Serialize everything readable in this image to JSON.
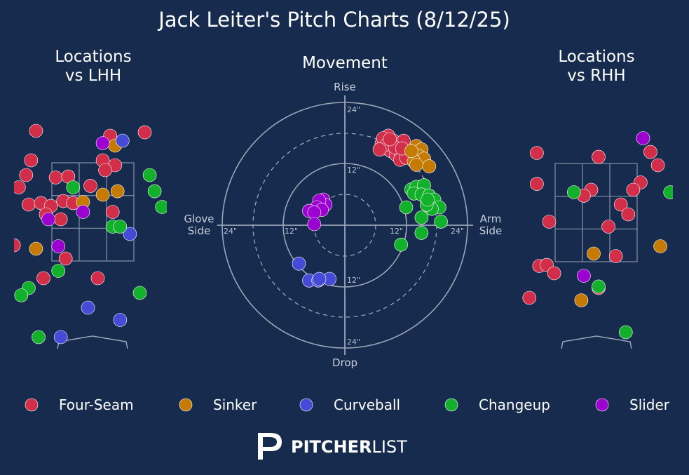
{
  "title": "Jack Leiter's Pitch Charts (8/12/25)",
  "panels": {
    "lhh": {
      "title_line1": "Locations",
      "title_line2": "vs LHH"
    },
    "movement": {
      "title": "Movement",
      "top_label": "Rise",
      "bottom_label": "Drop",
      "left_label_line1": "Glove",
      "left_label_line2": "Side",
      "right_label_line1": "Arm",
      "right_label_line2": "Side"
    },
    "rhh": {
      "title_line1": "Locations",
      "title_line2": "vs RHH"
    }
  },
  "ring_labels": [
    "24\"",
    "12\""
  ],
  "brand": {
    "bold": "PITCHER",
    "light": "LIST"
  },
  "colors": {
    "background": "#162b4d",
    "Four-Seam": "#d22d49",
    "Sinker": "#c57a02",
    "Curveball": "#454bd6",
    "Changeup": "#13b02b",
    "Slider": "#9b00d1"
  },
  "chart_data": [
    {
      "type": "scatter",
      "name": "Locations vs LHH",
      "points": [
        {
          "pitch": "Four-Seam",
          "x": -1.15,
          "y": 4.15
        },
        {
          "pitch": "Four-Seam",
          "x": 0.35,
          "y": 4.05
        },
        {
          "pitch": "Four-Seam",
          "x": 1.05,
          "y": 4.12
        },
        {
          "pitch": "Four-Seam",
          "x": -1.25,
          "y": 3.55
        },
        {
          "pitch": "Four-Seam",
          "x": 0.2,
          "y": 3.55
        },
        {
          "pitch": "Four-Seam",
          "x": 0.45,
          "y": 3.45
        },
        {
          "pitch": "Four-Seam",
          "x": -1.35,
          "y": 3.25
        },
        {
          "pitch": "Four-Seam",
          "x": -0.75,
          "y": 3.2
        },
        {
          "pitch": "Four-Seam",
          "x": -0.5,
          "y": 3.22
        },
        {
          "pitch": "Four-Seam",
          "x": 0.25,
          "y": 3.35
        },
        {
          "pitch": "Four-Seam",
          "x": -1.8,
          "y": 3.05
        },
        {
          "pitch": "Four-Seam",
          "x": -1.5,
          "y": 3.0
        },
        {
          "pitch": "Four-Seam",
          "x": -0.05,
          "y": 3.03
        },
        {
          "pitch": "Four-Seam",
          "x": -1.3,
          "y": 2.65
        },
        {
          "pitch": "Four-Seam",
          "x": -1.05,
          "y": 2.68
        },
        {
          "pitch": "Four-Seam",
          "x": -0.85,
          "y": 2.62
        },
        {
          "pitch": "Four-Seam",
          "x": -0.6,
          "y": 2.72
        },
        {
          "pitch": "Four-Seam",
          "x": -0.4,
          "y": 2.68
        },
        {
          "pitch": "Four-Seam",
          "x": -0.95,
          "y": 2.45
        },
        {
          "pitch": "Four-Seam",
          "x": -0.65,
          "y": 2.35
        },
        {
          "pitch": "Four-Seam",
          "x": 0.4,
          "y": 2.5
        },
        {
          "pitch": "Four-Seam",
          "x": -1.6,
          "y": 1.82
        },
        {
          "pitch": "Four-Seam",
          "x": -0.55,
          "y": 1.55
        },
        {
          "pitch": "Four-Seam",
          "x": -1.0,
          "y": 1.15
        },
        {
          "pitch": "Four-Seam",
          "x": 0.1,
          "y": 1.15
        },
        {
          "pitch": "Four-Seam",
          "x": 1.8,
          "y": 2.88
        },
        {
          "pitch": "Sinker",
          "x": 0.45,
          "y": 3.85
        },
        {
          "pitch": "Sinker",
          "x": -0.2,
          "y": 2.7
        },
        {
          "pitch": "Sinker",
          "x": 0.2,
          "y": 2.85
        },
        {
          "pitch": "Sinker",
          "x": 0.5,
          "y": 2.92
        },
        {
          "pitch": "Sinker",
          "x": -1.15,
          "y": 1.75
        },
        {
          "pitch": "Curveball",
          "x": 0.6,
          "y": 3.95
        },
        {
          "pitch": "Curveball",
          "x": 0.75,
          "y": 2.05
        },
        {
          "pitch": "Curveball",
          "x": -0.1,
          "y": 0.55
        },
        {
          "pitch": "Curveball",
          "x": 0.55,
          "y": 0.3
        },
        {
          "pitch": "Curveball",
          "x": -0.65,
          "y": -0.05
        },
        {
          "pitch": "Changeup",
          "x": -0.4,
          "y": 3.0
        },
        {
          "pitch": "Changeup",
          "x": 1.15,
          "y": 3.25
        },
        {
          "pitch": "Changeup",
          "x": 1.25,
          "y": 2.92
        },
        {
          "pitch": "Changeup",
          "x": 1.4,
          "y": 2.6
        },
        {
          "pitch": "Changeup",
          "x": 0.4,
          "y": 2.2
        },
        {
          "pitch": "Changeup",
          "x": 0.55,
          "y": 2.2
        },
        {
          "pitch": "Changeup",
          "x": -0.7,
          "y": 1.3
        },
        {
          "pitch": "Changeup",
          "x": 0.95,
          "y": 0.85
        },
        {
          "pitch": "Changeup",
          "x": -1.3,
          "y": 0.95
        },
        {
          "pitch": "Changeup",
          "x": -1.45,
          "y": 0.8
        },
        {
          "pitch": "Changeup",
          "x": -1.1,
          "y": -0.05
        },
        {
          "pitch": "Slider",
          "x": 0.2,
          "y": 3.9
        },
        {
          "pitch": "Slider",
          "x": -0.9,
          "y": 2.35
        },
        {
          "pitch": "Slider",
          "x": -0.2,
          "y": 2.5
        },
        {
          "pitch": "Slider",
          "x": -0.7,
          "y": 1.8
        }
      ]
    },
    {
      "type": "scatter",
      "name": "Movement",
      "xlabel": "Glove Side / Arm Side (inches)",
      "ylabel": "Drop / Rise (inches)",
      "xlim": [
        -24,
        24
      ],
      "ylim": [
        -24,
        24
      ],
      "points": [
        {
          "pitch": "Four-Seam",
          "x": 8.5,
          "y": 17.5
        },
        {
          "pitch": "Four-Seam",
          "x": 9.5,
          "y": 16.5
        },
        {
          "pitch": "Four-Seam",
          "x": 10.5,
          "y": 15.5
        },
        {
          "pitch": "Four-Seam",
          "x": 8.0,
          "y": 15.0
        },
        {
          "pitch": "Four-Seam",
          "x": 7.2,
          "y": 16.0
        },
        {
          "pitch": "Four-Seam",
          "x": 9.0,
          "y": 14.5
        },
        {
          "pitch": "Four-Seam",
          "x": 10.0,
          "y": 13.8
        },
        {
          "pitch": "Four-Seam",
          "x": 11.0,
          "y": 14.0
        },
        {
          "pitch": "Four-Seam",
          "x": 11.5,
          "y": 16.5
        },
        {
          "pitch": "Four-Seam",
          "x": 7.5,
          "y": 17.0
        },
        {
          "pitch": "Four-Seam",
          "x": 10.8,
          "y": 12.8
        },
        {
          "pitch": "Four-Seam",
          "x": 12.0,
          "y": 13.2
        },
        {
          "pitch": "Four-Seam",
          "x": 8.2,
          "y": 15.8
        },
        {
          "pitch": "Four-Seam",
          "x": 9.8,
          "y": 15.2
        },
        {
          "pitch": "Four-Seam",
          "x": 6.8,
          "y": 14.8
        },
        {
          "pitch": "Four-Seam",
          "x": 8.8,
          "y": 16.8
        },
        {
          "pitch": "Four-Seam",
          "x": 11.2,
          "y": 15.0
        },
        {
          "pitch": "Sinker",
          "x": 14.0,
          "y": 15.5
        },
        {
          "pitch": "Sinker",
          "x": 15.0,
          "y": 14.8
        },
        {
          "pitch": "Sinker",
          "x": 14.5,
          "y": 13.5
        },
        {
          "pitch": "Sinker",
          "x": 15.5,
          "y": 13.0
        },
        {
          "pitch": "Sinker",
          "x": 13.5,
          "y": 12.5
        },
        {
          "pitch": "Sinker",
          "x": 14.0,
          "y": 11.8
        },
        {
          "pitch": "Sinker",
          "x": 16.5,
          "y": 11.5
        },
        {
          "pitch": "Sinker",
          "x": 13.0,
          "y": 14.5
        },
        {
          "pitch": "Curveball",
          "x": -9.0,
          "y": -7.5
        },
        {
          "pitch": "Curveball",
          "x": -7.0,
          "y": -10.8
        },
        {
          "pitch": "Curveball",
          "x": -5.2,
          "y": -10.8
        },
        {
          "pitch": "Curveball",
          "x": -3.0,
          "y": -10.5
        },
        {
          "pitch": "Curveball",
          "x": -5.0,
          "y": -10.5
        },
        {
          "pitch": "Changeup",
          "x": 13.0,
          "y": 7.0
        },
        {
          "pitch": "Changeup",
          "x": 14.0,
          "y": 7.5
        },
        {
          "pitch": "Changeup",
          "x": 15.5,
          "y": 7.8
        },
        {
          "pitch": "Changeup",
          "x": 13.5,
          "y": 6.2
        },
        {
          "pitch": "Changeup",
          "x": 15.0,
          "y": 6.0
        },
        {
          "pitch": "Changeup",
          "x": 16.5,
          "y": 5.8
        },
        {
          "pitch": "Changeup",
          "x": 17.5,
          "y": 5.0
        },
        {
          "pitch": "Changeup",
          "x": 18.5,
          "y": 3.5
        },
        {
          "pitch": "Changeup",
          "x": 17.0,
          "y": 3.2
        },
        {
          "pitch": "Changeup",
          "x": 16.0,
          "y": 4.0
        },
        {
          "pitch": "Changeup",
          "x": 12.0,
          "y": 3.5
        },
        {
          "pitch": "Changeup",
          "x": 15.0,
          "y": 1.5
        },
        {
          "pitch": "Changeup",
          "x": 18.8,
          "y": 0.7
        },
        {
          "pitch": "Changeup",
          "x": 15.0,
          "y": -1.5
        },
        {
          "pitch": "Changeup",
          "x": 11.0,
          "y": -3.8
        },
        {
          "pitch": "Changeup",
          "x": 16.2,
          "y": 5.0
        },
        {
          "pitch": "Slider",
          "x": -4.2,
          "y": 5.0
        },
        {
          "pitch": "Slider",
          "x": -3.8,
          "y": 4.0
        },
        {
          "pitch": "Slider",
          "x": -5.0,
          "y": 4.8
        },
        {
          "pitch": "Slider",
          "x": -5.5,
          "y": 3.5
        },
        {
          "pitch": "Slider",
          "x": -4.5,
          "y": 3.0
        },
        {
          "pitch": "Slider",
          "x": -7.0,
          "y": 2.8
        },
        {
          "pitch": "Slider",
          "x": -6.0,
          "y": 2.5
        },
        {
          "pitch": "Slider",
          "x": -6.0,
          "y": 0.2
        }
      ]
    },
    {
      "type": "scatter",
      "name": "Locations vs RHH",
      "points": [
        {
          "pitch": "Four-Seam",
          "x": -1.2,
          "y": 3.7
        },
        {
          "pitch": "Four-Seam",
          "x": 0.05,
          "y": 3.62
        },
        {
          "pitch": "Four-Seam",
          "x": 1.1,
          "y": 3.72
        },
        {
          "pitch": "Four-Seam",
          "x": 1.25,
          "y": 3.45
        },
        {
          "pitch": "Four-Seam",
          "x": 0.9,
          "y": 3.1
        },
        {
          "pitch": "Four-Seam",
          "x": 0.75,
          "y": 2.95
        },
        {
          "pitch": "Four-Seam",
          "x": -1.2,
          "y": 3.07
        },
        {
          "pitch": "Four-Seam",
          "x": -0.1,
          "y": 2.95
        },
        {
          "pitch": "Four-Seam",
          "x": -0.25,
          "y": 2.83
        },
        {
          "pitch": "Four-Seam",
          "x": 0.5,
          "y": 2.65
        },
        {
          "pitch": "Four-Seam",
          "x": 0.65,
          "y": 2.45
        },
        {
          "pitch": "Four-Seam",
          "x": -0.95,
          "y": 2.3
        },
        {
          "pitch": "Four-Seam",
          "x": 0.25,
          "y": 2.2
        },
        {
          "pitch": "Four-Seam",
          "x": 0.4,
          "y": 1.6
        },
        {
          "pitch": "Four-Seam",
          "x": -1.15,
          "y": 1.4
        },
        {
          "pitch": "Four-Seam",
          "x": -1.0,
          "y": 1.42
        },
        {
          "pitch": "Four-Seam",
          "x": -0.85,
          "y": 1.25
        },
        {
          "pitch": "Four-Seam",
          "x": 0.05,
          "y": 0.95
        },
        {
          "pitch": "Four-Seam",
          "x": -1.35,
          "y": 0.75
        },
        {
          "pitch": "Four-Seam",
          "x": -2.35,
          "y": 2.58
        },
        {
          "pitch": "Sinker",
          "x": 1.9,
          "y": 4.6
        },
        {
          "pitch": "Sinker",
          "x": 1.3,
          "y": 1.8
        },
        {
          "pitch": "Sinker",
          "x": -0.05,
          "y": 1.65
        },
        {
          "pitch": "Sinker",
          "x": -0.3,
          "y": 0.7
        },
        {
          "pitch": "Slider",
          "x": 0.95,
          "y": 4.0
        },
        {
          "pitch": "Slider",
          "x": -0.25,
          "y": 1.2
        },
        {
          "pitch": "Changeup",
          "x": -0.45,
          "y": 2.9
        },
        {
          "pitch": "Changeup",
          "x": 1.5,
          "y": 2.9
        },
        {
          "pitch": "Changeup",
          "x": 0.05,
          "y": 0.98
        },
        {
          "pitch": "Changeup",
          "x": 1.75,
          "y": 1.42
        },
        {
          "pitch": "Changeup",
          "x": 0.6,
          "y": 0.05
        }
      ]
    }
  ],
  "legend": [
    {
      "label": "Four-Seam",
      "pitch": "Four-Seam"
    },
    {
      "label": "Sinker",
      "pitch": "Sinker"
    },
    {
      "label": "Curveball",
      "pitch": "Curveball"
    },
    {
      "label": "Changeup",
      "pitch": "Changeup"
    },
    {
      "label": "Slider",
      "pitch": "Slider"
    }
  ]
}
